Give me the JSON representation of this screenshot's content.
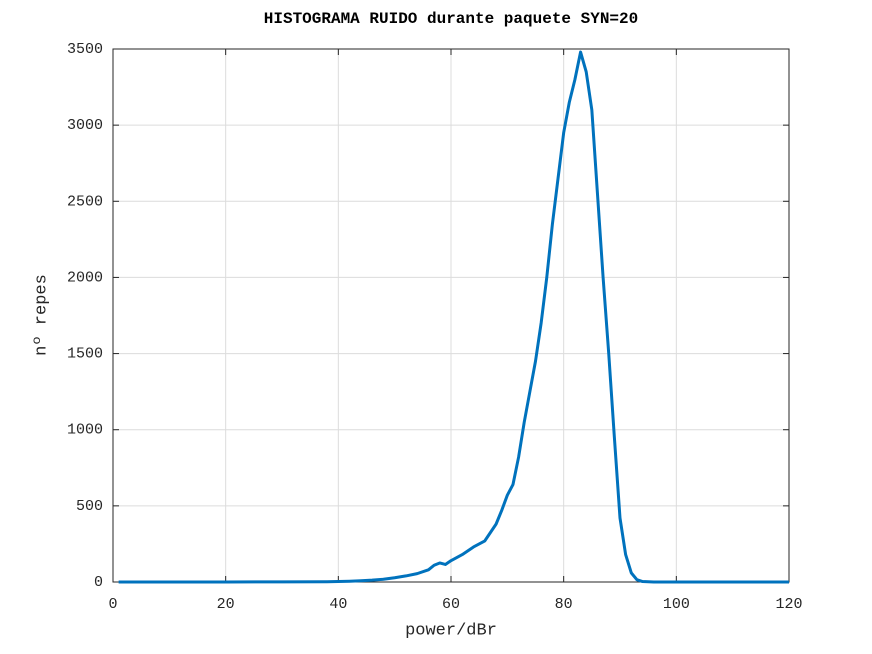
{
  "chart_data": {
    "type": "line",
    "title": "HISTOGRAMA RUIDO durante paquete SYN=20",
    "x_label": "power/dBr",
    "y_label": "nº repes",
    "x": [
      1,
      10,
      20,
      30,
      38,
      40,
      42,
      44,
      46,
      48,
      50,
      52,
      54,
      56,
      57,
      58,
      59,
      60,
      62,
      64,
      66,
      68,
      69,
      70,
      71,
      72,
      73,
      74,
      75,
      76,
      77,
      78,
      79,
      80,
      81,
      82,
      83,
      84,
      85,
      86,
      87,
      88,
      89,
      90,
      91,
      92,
      93,
      94,
      96,
      110,
      120
    ],
    "series": [
      {
        "name": "nº repes",
        "color": "#0072bd",
        "values": [
          0,
          0,
          0,
          1,
          2,
          3,
          5,
          8,
          12,
          18,
          28,
          40,
          55,
          80,
          110,
          125,
          115,
          140,
          180,
          230,
          270,
          380,
          470,
          570,
          640,
          820,
          1050,
          1250,
          1450,
          1700,
          2000,
          2350,
          2650,
          2950,
          3150,
          3300,
          3480,
          3350,
          3100,
          2550,
          2000,
          1500,
          950,
          420,
          180,
          60,
          15,
          3,
          0,
          0,
          0
        ]
      }
    ],
    "xlim": [
      0,
      120
    ],
    "xticks": [
      0,
      20,
      40,
      60,
      80,
      100,
      120
    ],
    "ylim": [
      0,
      3500
    ],
    "yticks": [
      0,
      500,
      1000,
      1500,
      2000,
      2500,
      3000,
      3500
    ],
    "grid": true
  }
}
